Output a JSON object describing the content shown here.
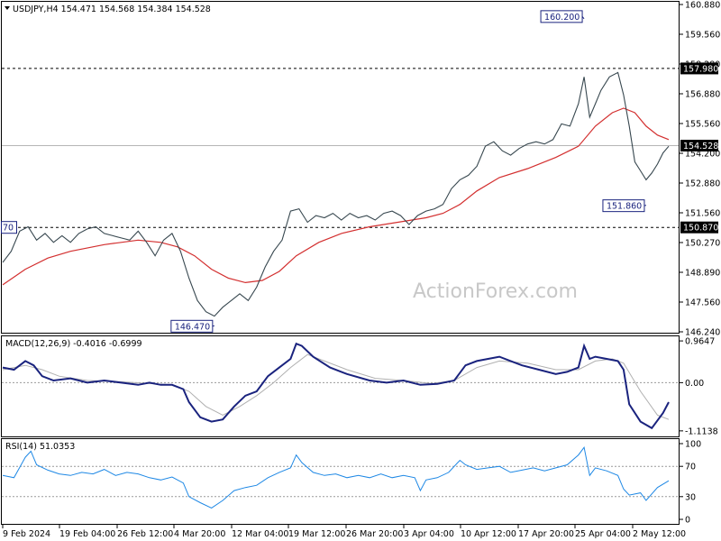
{
  "main_header": "USDJPY,H4  154.471 154.568 154.384 154.528",
  "macd_header": "MACD(12,26,9) -0.4016 -0.6999",
  "rsi_header": "RSI(14) 51.0353",
  "watermark": "ActionForex.com",
  "colors": {
    "price": "#37474f",
    "ma": "#d32f2f",
    "macd": "#1a237e",
    "signal": "#b0b0b0",
    "rsi": "#1e88e5"
  },
  "chart_data": [
    {
      "type": "line",
      "pane": "price",
      "ylim": [
        146.24,
        160.88
      ],
      "y_ticks": [
        "160.880",
        "159.560",
        "158.280",
        "156.880",
        "155.560",
        "154.200",
        "152.880",
        "151.560",
        "150.270",
        "148.890",
        "147.560",
        "146.240"
      ],
      "x_ticks": [
        "9 Feb 2024",
        "19 Feb 04:00",
        "26 Feb 12:00",
        "4 Mar 20:00",
        "12 Mar 04:00",
        "19 Mar 12:00",
        "26 Mar 20:00",
        "3 Apr 04:00",
        "10 Apr 12:00",
        "17 Apr 20:00",
        "25 Apr 04:00",
        "2 May 12:00"
      ],
      "price_path": [
        [
          0,
          149.3
        ],
        [
          3,
          149.8
        ],
        [
          6,
          150.7
        ],
        [
          9,
          150.9
        ],
        [
          12,
          150.3
        ],
        [
          15,
          150.6
        ],
        [
          18,
          150.2
        ],
        [
          21,
          150.5
        ],
        [
          24,
          150.2
        ],
        [
          27,
          150.6
        ],
        [
          30,
          150.8
        ],
        [
          33,
          150.9
        ],
        [
          36,
          150.6
        ],
        [
          39,
          150.5
        ],
        [
          42,
          150.4
        ],
        [
          45,
          150.3
        ],
        [
          48,
          150.7
        ],
        [
          51,
          150.2
        ],
        [
          54,
          149.6
        ],
        [
          57,
          150.3
        ],
        [
          60,
          150.6
        ],
        [
          63,
          149.8
        ],
        [
          66,
          148.6
        ],
        [
          69,
          147.6
        ],
        [
          72,
          147.1
        ],
        [
          75,
          146.9
        ],
        [
          78,
          147.3
        ],
        [
          81,
          147.6
        ],
        [
          84,
          147.9
        ],
        [
          87,
          147.6
        ],
        [
          90,
          148.2
        ],
        [
          93,
          149.1
        ],
        [
          96,
          149.8
        ],
        [
          99,
          150.3
        ],
        [
          102,
          151.6
        ],
        [
          105,
          151.7
        ],
        [
          108,
          151.1
        ],
        [
          111,
          151.4
        ],
        [
          114,
          151.3
        ],
        [
          117,
          151.5
        ],
        [
          120,
          151.2
        ],
        [
          123,
          151.5
        ],
        [
          126,
          151.3
        ],
        [
          129,
          151.4
        ],
        [
          132,
          151.2
        ],
        [
          135,
          151.5
        ],
        [
          138,
          151.6
        ],
        [
          141,
          151.4
        ],
        [
          144,
          151.0
        ],
        [
          147,
          151.4
        ],
        [
          150,
          151.6
        ],
        [
          153,
          151.7
        ],
        [
          156,
          151.9
        ],
        [
          159,
          152.6
        ],
        [
          162,
          153.0
        ],
        [
          165,
          153.2
        ],
        [
          168,
          153.6
        ],
        [
          171,
          154.5
        ],
        [
          174,
          154.7
        ],
        [
          177,
          154.3
        ],
        [
          180,
          154.1
        ],
        [
          183,
          154.4
        ],
        [
          186,
          154.6
        ],
        [
          189,
          154.7
        ],
        [
          192,
          154.6
        ],
        [
          195,
          154.8
        ],
        [
          198,
          155.5
        ],
        [
          201,
          155.4
        ],
        [
          204,
          156.4
        ],
        [
          206,
          157.6
        ],
        [
          208,
          155.8
        ],
        [
          210,
          156.4
        ],
        [
          212,
          157.0
        ],
        [
          215,
          157.6
        ],
        [
          218,
          157.8
        ],
        [
          220,
          156.8
        ],
        [
          222,
          155.4
        ],
        [
          224,
          153.8
        ],
        [
          226,
          153.4
        ],
        [
          228,
          153.0
        ],
        [
          230,
          153.3
        ],
        [
          232,
          153.7
        ],
        [
          234,
          154.2
        ],
        [
          236,
          154.5
        ]
      ],
      "ma_path": [
        [
          0,
          148.3
        ],
        [
          8,
          149.0
        ],
        [
          16,
          149.5
        ],
        [
          24,
          149.8
        ],
        [
          36,
          150.1
        ],
        [
          48,
          150.3
        ],
        [
          56,
          150.2
        ],
        [
          62,
          150.0
        ],
        [
          68,
          149.6
        ],
        [
          74,
          149.0
        ],
        [
          80,
          148.6
        ],
        [
          86,
          148.4
        ],
        [
          92,
          148.5
        ],
        [
          98,
          148.9
        ],
        [
          104,
          149.6
        ],
        [
          112,
          150.2
        ],
        [
          120,
          150.6
        ],
        [
          130,
          150.9
        ],
        [
          140,
          151.1
        ],
        [
          150,
          151.3
        ],
        [
          156,
          151.5
        ],
        [
          162,
          151.9
        ],
        [
          168,
          152.5
        ],
        [
          176,
          153.1
        ],
        [
          186,
          153.5
        ],
        [
          196,
          154.0
        ],
        [
          204,
          154.5
        ],
        [
          210,
          155.4
        ],
        [
          216,
          156.0
        ],
        [
          220,
          156.2
        ],
        [
          224,
          156.0
        ],
        [
          228,
          155.4
        ],
        [
          232,
          155.0
        ],
        [
          236,
          154.8
        ]
      ],
      "annotations": [
        {
          "text": "160.200",
          "x": 206,
          "y": 160.2
        },
        {
          "text": "146.470",
          "x": 75,
          "y": 146.47
        },
        {
          "text": "151.860",
          "x": 228,
          "y": 151.86
        }
      ],
      "levels": [
        {
          "text": "157.980",
          "y": 157.98
        },
        {
          "text": "150.870",
          "y": 150.87
        },
        {
          "text": "154.528",
          "y": 154.528
        }
      ]
    },
    {
      "type": "line",
      "pane": "macd",
      "ylim": [
        -1.2,
        1.05
      ],
      "y_ticks": [
        "0.9647",
        "0.00",
        "-1.1138"
      ],
      "macd_path": [
        [
          0,
          0.35
        ],
        [
          4,
          0.3
        ],
        [
          8,
          0.5
        ],
        [
          11,
          0.4
        ],
        [
          14,
          0.15
        ],
        [
          18,
          0.05
        ],
        [
          24,
          0.1
        ],
        [
          30,
          0.0
        ],
        [
          36,
          0.05
        ],
        [
          42,
          0.0
        ],
        [
          48,
          -0.05
        ],
        [
          52,
          0.0
        ],
        [
          56,
          -0.05
        ],
        [
          60,
          -0.05
        ],
        [
          64,
          -0.15
        ],
        [
          66,
          -0.45
        ],
        [
          70,
          -0.8
        ],
        [
          74,
          -0.9
        ],
        [
          78,
          -0.85
        ],
        [
          82,
          -0.55
        ],
        [
          86,
          -0.3
        ],
        [
          90,
          -0.2
        ],
        [
          94,
          0.15
        ],
        [
          98,
          0.35
        ],
        [
          102,
          0.55
        ],
        [
          104,
          0.9
        ],
        [
          106,
          0.85
        ],
        [
          110,
          0.6
        ],
        [
          116,
          0.35
        ],
        [
          122,
          0.2
        ],
        [
          130,
          0.05
        ],
        [
          136,
          0.0
        ],
        [
          142,
          0.05
        ],
        [
          148,
          -0.05
        ],
        [
          154,
          -0.03
        ],
        [
          160,
          0.05
        ],
        [
          164,
          0.4
        ],
        [
          168,
          0.5
        ],
        [
          172,
          0.55
        ],
        [
          176,
          0.6
        ],
        [
          180,
          0.5
        ],
        [
          184,
          0.4
        ],
        [
          190,
          0.3
        ],
        [
          196,
          0.2
        ],
        [
          200,
          0.25
        ],
        [
          204,
          0.35
        ],
        [
          206,
          0.85
        ],
        [
          208,
          0.55
        ],
        [
          210,
          0.6
        ],
        [
          214,
          0.55
        ],
        [
          218,
          0.5
        ],
        [
          220,
          0.3
        ],
        [
          222,
          -0.5
        ],
        [
          226,
          -0.9
        ],
        [
          230,
          -1.05
        ],
        [
          234,
          -0.7
        ],
        [
          236,
          -0.45
        ]
      ],
      "signal_path": [
        [
          0,
          0.3
        ],
        [
          8,
          0.4
        ],
        [
          14,
          0.3
        ],
        [
          20,
          0.15
        ],
        [
          30,
          0.05
        ],
        [
          42,
          0.02
        ],
        [
          52,
          -0.02
        ],
        [
          60,
          -0.05
        ],
        [
          66,
          -0.2
        ],
        [
          72,
          -0.55
        ],
        [
          78,
          -0.75
        ],
        [
          84,
          -0.55
        ],
        [
          90,
          -0.3
        ],
        [
          96,
          0.0
        ],
        [
          102,
          0.35
        ],
        [
          108,
          0.65
        ],
        [
          114,
          0.5
        ],
        [
          122,
          0.3
        ],
        [
          132,
          0.1
        ],
        [
          142,
          0.05
        ],
        [
          152,
          -0.02
        ],
        [
          160,
          0.05
        ],
        [
          168,
          0.35
        ],
        [
          176,
          0.5
        ],
        [
          186,
          0.45
        ],
        [
          196,
          0.3
        ],
        [
          204,
          0.3
        ],
        [
          210,
          0.5
        ],
        [
          216,
          0.55
        ],
        [
          220,
          0.45
        ],
        [
          226,
          -0.2
        ],
        [
          232,
          -0.75
        ],
        [
          236,
          -0.85
        ]
      ]
    },
    {
      "type": "line",
      "pane": "rsi",
      "ylim": [
        0,
        100
      ],
      "y_ticks": [
        "100",
        "70",
        "30",
        "0"
      ],
      "rsi_path": [
        [
          0,
          58
        ],
        [
          4,
          55
        ],
        [
          8,
          82
        ],
        [
          10,
          90
        ],
        [
          12,
          72
        ],
        [
          16,
          65
        ],
        [
          20,
          60
        ],
        [
          24,
          58
        ],
        [
          28,
          62
        ],
        [
          32,
          60
        ],
        [
          36,
          66
        ],
        [
          40,
          58
        ],
        [
          44,
          62
        ],
        [
          48,
          60
        ],
        [
          52,
          55
        ],
        [
          56,
          52
        ],
        [
          60,
          56
        ],
        [
          64,
          48
        ],
        [
          66,
          30
        ],
        [
          70,
          22
        ],
        [
          74,
          15
        ],
        [
          78,
          25
        ],
        [
          82,
          38
        ],
        [
          86,
          42
        ],
        [
          90,
          45
        ],
        [
          94,
          55
        ],
        [
          98,
          62
        ],
        [
          102,
          68
        ],
        [
          104,
          85
        ],
        [
          106,
          75
        ],
        [
          110,
          62
        ],
        [
          114,
          58
        ],
        [
          118,
          60
        ],
        [
          122,
          55
        ],
        [
          126,
          58
        ],
        [
          130,
          55
        ],
        [
          134,
          60
        ],
        [
          138,
          55
        ],
        [
          142,
          58
        ],
        [
          146,
          55
        ],
        [
          148,
          38
        ],
        [
          150,
          52
        ],
        [
          154,
          55
        ],
        [
          158,
          62
        ],
        [
          162,
          78
        ],
        [
          164,
          72
        ],
        [
          168,
          66
        ],
        [
          172,
          68
        ],
        [
          176,
          70
        ],
        [
          180,
          62
        ],
        [
          184,
          65
        ],
        [
          188,
          68
        ],
        [
          192,
          64
        ],
        [
          196,
          68
        ],
        [
          200,
          72
        ],
        [
          204,
          85
        ],
        [
          206,
          95
        ],
        [
          208,
          58
        ],
        [
          210,
          68
        ],
        [
          214,
          64
        ],
        [
          218,
          58
        ],
        [
          220,
          40
        ],
        [
          222,
          32
        ],
        [
          226,
          35
        ],
        [
          228,
          25
        ],
        [
          232,
          42
        ],
        [
          236,
          51
        ]
      ]
    }
  ]
}
